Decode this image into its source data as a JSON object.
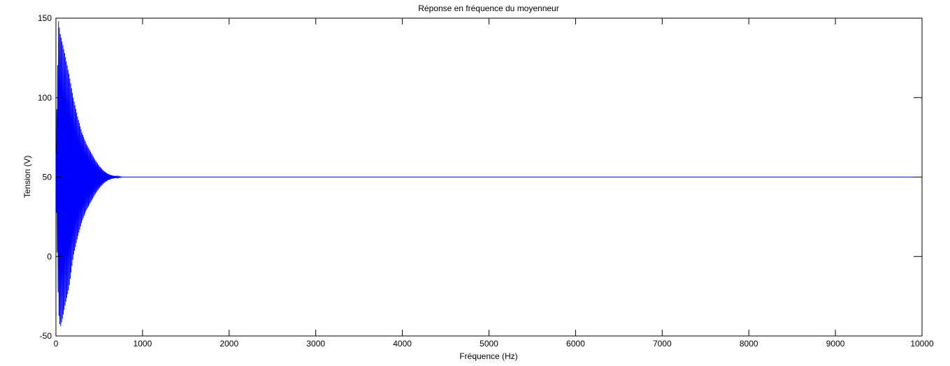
{
  "chart_data": {
    "type": "line",
    "title": "Réponse en fréquence du moyenneur",
    "xlabel": "Fréquence (Hz)",
    "ylabel": "Tension (V)",
    "xlim": [
      0,
      10000
    ],
    "ylim": [
      -50,
      150
    ],
    "x_ticks": [
      0,
      1000,
      2000,
      3000,
      4000,
      5000,
      6000,
      7000,
      8000,
      9000,
      10000
    ],
    "y_ticks": [
      -50,
      0,
      50,
      100,
      150
    ],
    "grid": false,
    "legend": "none",
    "series": [
      {
        "color": "#0000ff",
        "baseline": 50,
        "envelope": {
          "x": [
            0,
            30,
            50,
            80,
            100,
            150,
            200,
            250,
            300,
            350,
            400,
            450,
            500,
            550,
            600,
            650,
            700,
            780,
            10000
          ],
          "upper": [
            65,
            148,
            140,
            133,
            128,
            115,
            100,
            88,
            78,
            71,
            66,
            61,
            57,
            54,
            52,
            51,
            50.5,
            50,
            50
          ],
          "lower": [
            40,
            -35,
            -45,
            -38,
            -32,
            -20,
            0,
            12,
            22,
            29,
            34,
            39,
            43,
            46,
            48,
            49,
            49.5,
            50,
            50
          ]
        }
      }
    ]
  }
}
